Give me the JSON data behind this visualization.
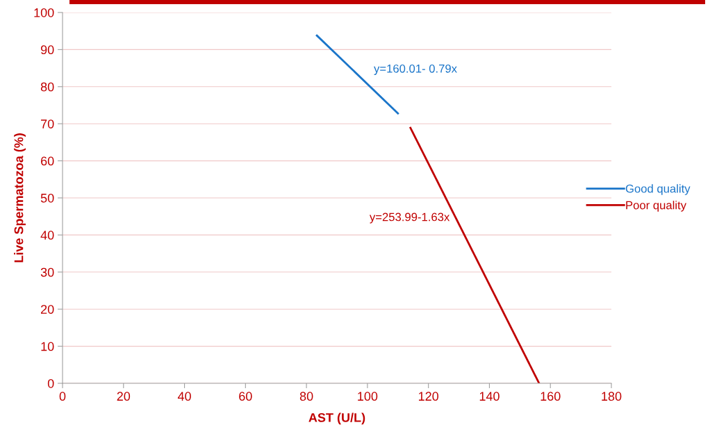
{
  "chart_data": {
    "type": "line",
    "xlabel": "AST (U/L)",
    "ylabel": "Live Spermatozoa (%)",
    "series": [
      {
        "name": "Good quality",
        "color": "#1a75c9",
        "x": [
          83.4,
          110.0
        ],
        "values": [
          93.8,
          72.8
        ]
      },
      {
        "name": "Poor quality",
        "color": "#c00000",
        "x": [
          114.1,
          156.3
        ],
        "values": [
          68.9,
          0
        ]
      }
    ],
    "annotations": [
      "y=160.01- 0.79x",
      "y=253.99-1.63x"
    ],
    "xlim": [
      0,
      180
    ],
    "xticks": [
      0,
      20,
      40,
      60,
      80,
      100,
      120,
      140,
      160,
      180
    ],
    "ylim": [
      0,
      100
    ],
    "yticks": [
      0,
      10,
      20,
      30,
      40,
      50,
      60,
      70,
      80,
      90,
      100
    ],
    "grid": "y",
    "legend": "right",
    "marker": "none",
    "line_style": "solid"
  }
}
